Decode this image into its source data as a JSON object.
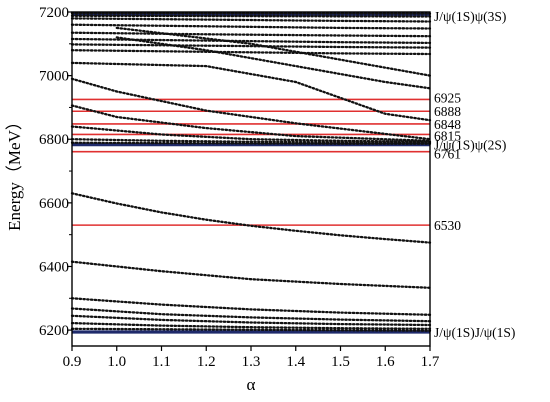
{
  "chart_data": {
    "type": "line",
    "xlabel": "α",
    "ylabel": "Energy（MeV）",
    "xlim": [
      0.9,
      1.7
    ],
    "ylim": [
      6150,
      7200
    ],
    "x_ticks": [
      "0.9",
      "1.0",
      "1.1",
      "1.2",
      "1.3",
      "1.4",
      "1.5",
      "1.6",
      "1.7"
    ],
    "y_ticks": [
      "6200",
      "6400",
      "6600",
      "6800",
      "7000",
      "7200"
    ],
    "grid": false,
    "thresholds": [
      {
        "label": "J/ψ(1S)J/ψ(1S)",
        "value": 6194,
        "color": "#1f2a6b"
      },
      {
        "label": "J/ψ(1S)ψ(2S)",
        "value": 6783,
        "color": "#1f2a6b"
      },
      {
        "label": "J/ψ(1S)ψ(3S)",
        "value": 7193,
        "color": "#1f2a6b"
      }
    ],
    "resonances": [
      {
        "label": "6530",
        "value": 6530,
        "color": "#e03030"
      },
      {
        "label": "6761",
        "value": 6761,
        "color": "#e03030"
      },
      {
        "label": "6815",
        "value": 6815,
        "color": "#e03030"
      },
      {
        "label": "6848",
        "value": 6848,
        "color": "#e03030"
      },
      {
        "label": "6888",
        "value": 6888,
        "color": "#e03030"
      },
      {
        "label": "6925",
        "value": 6925,
        "color": "#e03030"
      }
    ],
    "series": [
      {
        "x": [
          0.9,
          1.7
        ],
        "y": [
          6204,
          6198
        ]
      },
      {
        "x": [
          0.9,
          1.1,
          1.3,
          1.5,
          1.7
        ],
        "y": [
          6222,
          6214,
          6209,
          6206,
          6204
        ]
      },
      {
        "x": [
          0.9,
          1.1,
          1.3,
          1.5,
          1.7
        ],
        "y": [
          6245,
          6232,
          6224,
          6219,
          6216
        ]
      },
      {
        "x": [
          0.9,
          1.1,
          1.3,
          1.5,
          1.7
        ],
        "y": [
          6268,
          6250,
          6240,
          6233,
          6228
        ]
      },
      {
        "x": [
          0.9,
          1.1,
          1.3,
          1.5,
          1.7
        ],
        "y": [
          6300,
          6280,
          6265,
          6255,
          6248
        ]
      },
      {
        "x": [
          0.9,
          1.1,
          1.3,
          1.5,
          1.7
        ],
        "y": [
          6415,
          6385,
          6360,
          6345,
          6333
        ]
      },
      {
        "x": [
          0.9,
          1.0,
          1.1,
          1.2,
          1.3,
          1.4,
          1.5,
          1.6,
          1.7
        ],
        "y": [
          6630,
          6598,
          6570,
          6547,
          6528,
          6512,
          6498,
          6486,
          6475
        ]
      },
      {
        "x": [
          0.9,
          1.1,
          1.3,
          1.5,
          1.7
        ],
        "y": [
          6789,
          6788,
          6787,
          6786,
          6786
        ]
      },
      {
        "x": [
          0.9,
          1.1,
          1.3,
          1.5,
          1.7
        ],
        "y": [
          6800,
          6795,
          6792,
          6790,
          6789
        ]
      },
      {
        "x": [
          0.9,
          1.1,
          1.3,
          1.5,
          1.7
        ],
        "y": [
          6840,
          6815,
          6800,
          6795,
          6792
        ]
      },
      {
        "x": [
          0.9,
          1.0,
          1.2,
          1.4,
          1.7
        ],
        "y": [
          6906,
          6870,
          6835,
          6810,
          6795
        ]
      },
      {
        "x": [
          0.9,
          1.0,
          1.2,
          1.4,
          1.7
        ],
        "y": [
          6990,
          6950,
          6890,
          6850,
          6800
        ]
      },
      {
        "x": [
          0.9,
          1.2,
          1.4,
          1.6,
          1.7
        ],
        "y": [
          7040,
          7030,
          6980,
          6880,
          6860
        ]
      },
      {
        "x": [
          1.0,
          1.2,
          1.4,
          1.6,
          1.7
        ],
        "y": [
          7120,
          7080,
          7030,
          6980,
          6960
        ]
      },
      {
        "x": [
          1.0,
          1.3,
          1.5,
          1.7
        ],
        "y": [
          7150,
          7100,
          7050,
          7000
        ]
      },
      {
        "x": [
          0.9,
          1.2,
          1.5,
          1.7
        ],
        "y": [
          7080,
          7075,
          7070,
          7068
        ]
      },
      {
        "x": [
          0.9,
          1.2,
          1.5,
          1.7
        ],
        "y": [
          7098,
          7094,
          7090,
          7088
        ]
      },
      {
        "x": [
          0.9,
          1.2,
          1.5,
          1.7
        ],
        "y": [
          7115,
          7110,
          7105,
          7103
        ]
      },
      {
        "x": [
          0.9,
          1.2,
          1.5,
          1.7
        ],
        "y": [
          7135,
          7130,
          7126,
          7124
        ]
      },
      {
        "x": [
          0.9,
          1.2,
          1.5,
          1.7
        ],
        "y": [
          7160,
          7155,
          7150,
          7148
        ]
      },
      {
        "x": [
          0.9,
          1.2,
          1.5,
          1.7
        ],
        "y": [
          7180,
          7176,
          7172,
          7170
        ]
      },
      {
        "x": [
          0.9,
          1.7
        ],
        "y": [
          7188,
          7186
        ]
      },
      {
        "x": [
          0.9,
          1.7
        ],
        "y": [
          7196,
          7195
        ]
      }
    ]
  }
}
